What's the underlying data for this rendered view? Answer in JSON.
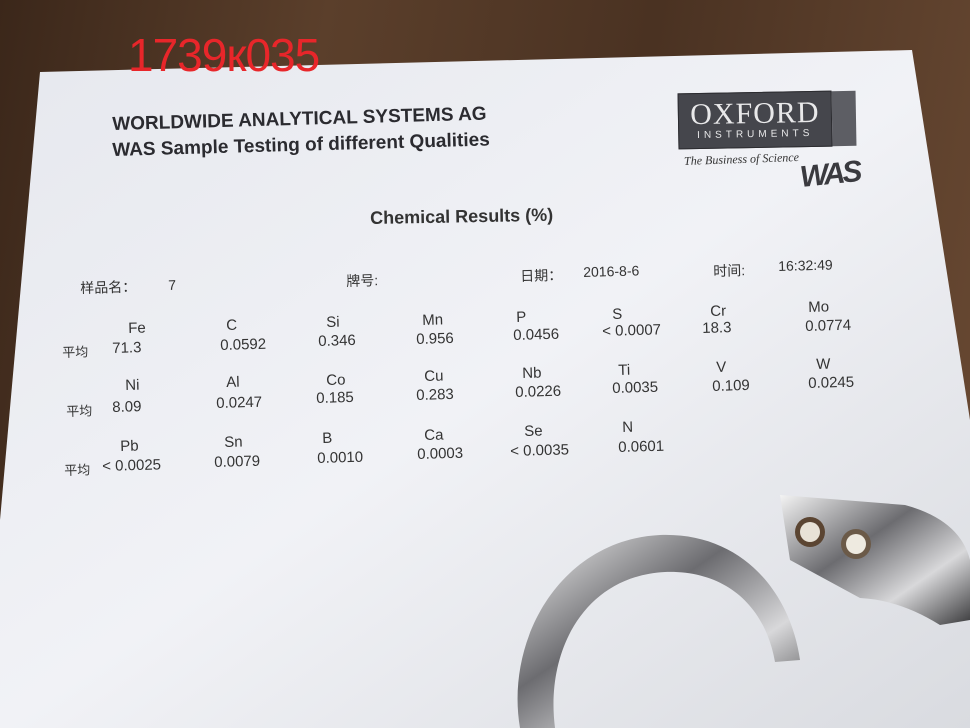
{
  "stamp_label": "1739к035",
  "document": {
    "company": "WORLDWIDE ANALYTICAL SYSTEMS AG",
    "subtitle": "WAS Sample Testing of different Qualities",
    "section_title": "Chemical Results   (%)",
    "logo": {
      "brand": "OXFORD",
      "sub": "INSTRUMENTS",
      "tagline": "The Business of Science",
      "mark": "WAS"
    },
    "meta": {
      "sample_name_label": "样品名：",
      "sample_name_value": "7",
      "grade_label": "牌号:",
      "date_label": "日期：",
      "date_value": "2016-8-6",
      "time_label": "时间:",
      "time_value": "16:32:49"
    },
    "average_label": "平均",
    "rows": [
      [
        {
          "el": "Fe",
          "val": "71.3"
        },
        {
          "el": "C",
          "val": "0.0592"
        },
        {
          "el": "Si",
          "val": "0.346"
        },
        {
          "el": "Mn",
          "val": "0.956"
        },
        {
          "el": "P",
          "val": "0.0456"
        },
        {
          "el": "S",
          "val": "< 0.0007"
        },
        {
          "el": "Cr",
          "val": "18.3"
        },
        {
          "el": "Mo",
          "val": "0.0774"
        }
      ],
      [
        {
          "el": "Ni",
          "val": "8.09"
        },
        {
          "el": "Al",
          "val": "0.0247"
        },
        {
          "el": "Co",
          "val": "0.185"
        },
        {
          "el": "Cu",
          "val": "0.283"
        },
        {
          "el": "Nb",
          "val": "0.0226"
        },
        {
          "el": "Ti",
          "val": "0.0035"
        },
        {
          "el": "V",
          "val": "0.109"
        },
        {
          "el": "W",
          "val": "0.0245"
        }
      ],
      [
        {
          "el": "Pb",
          "val": "< 0.0025"
        },
        {
          "el": "Sn",
          "val": "0.0079"
        },
        {
          "el": "B",
          "val": "0.0010"
        },
        {
          "el": "Ca",
          "val": "0.0003"
        },
        {
          "el": "Se",
          "val": "< 0.0035"
        },
        {
          "el": "N",
          "val": "0.0601"
        }
      ]
    ]
  }
}
